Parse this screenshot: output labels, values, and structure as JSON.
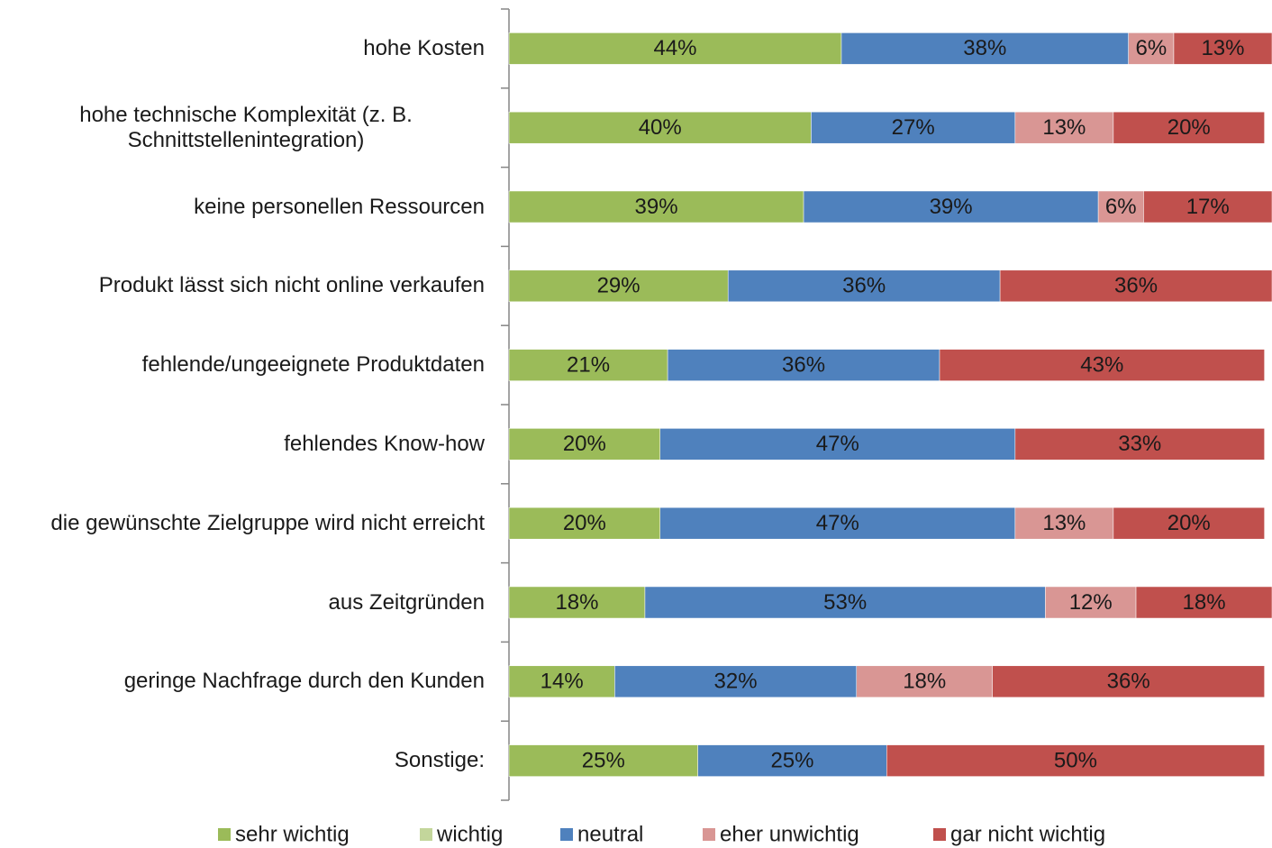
{
  "chart_data": {
    "type": "stacked-barh",
    "categories": [
      "hohe Kosten",
      "hohe technische Komplexität (z. B. Schnittstellenintegration)",
      "keine personellen Ressourcen",
      "Produkt lässt sich nicht online verkaufen",
      "fehlende/ungeeignete Produktdaten",
      "fehlendes Know-how",
      "die gewünschte Zielgruppe wird nicht erreicht",
      "aus Zeitgründen",
      "geringe Nachfrage durch den Kunden",
      "Sonstige:"
    ],
    "series": [
      {
        "name": "sehr wichtig",
        "color": "#9bbb59",
        "values": [
          44,
          40,
          39,
          29,
          21,
          20,
          20,
          18,
          14,
          25
        ],
        "value_labels": [
          "44%",
          "40%",
          "39%",
          "29%",
          "21%",
          "20%",
          "20%",
          "18%",
          "14%",
          "25%"
        ]
      },
      {
        "name": "wichtig",
        "color": "#c3d69b",
        "values": [
          null,
          null,
          null,
          null,
          null,
          null,
          null,
          null,
          null,
          null
        ],
        "value_labels": [
          null,
          null,
          null,
          null,
          null,
          null,
          null,
          null,
          null,
          null
        ]
      },
      {
        "name": "neutral",
        "color": "#4f81bd",
        "values": [
          38,
          27,
          39,
          36,
          36,
          47,
          47,
          53,
          32,
          25
        ],
        "value_labels": [
          "38%",
          "27%",
          "39%",
          "36%",
          "36%",
          "47%",
          "47%",
          "53%",
          "32%",
          "25%"
        ]
      },
      {
        "name": "eher unwichtig",
        "color": "#d99694",
        "values": [
          6,
          13,
          6,
          null,
          null,
          null,
          13,
          12,
          18,
          null
        ],
        "value_labels": [
          "6%",
          "13%",
          "6%",
          null,
          null,
          null,
          "13%",
          "12%",
          "18%",
          null
        ]
      },
      {
        "name": "gar nicht wichtig",
        "color": "#c0504d",
        "values": [
          13,
          20,
          17,
          36,
          43,
          33,
          20,
          18,
          36,
          50
        ],
        "value_labels": [
          "13%",
          "20%",
          "17%",
          "36%",
          "43%",
          "33%",
          "20%",
          "18%",
          "36%",
          "50%"
        ]
      }
    ],
    "legend": "bottom"
  }
}
